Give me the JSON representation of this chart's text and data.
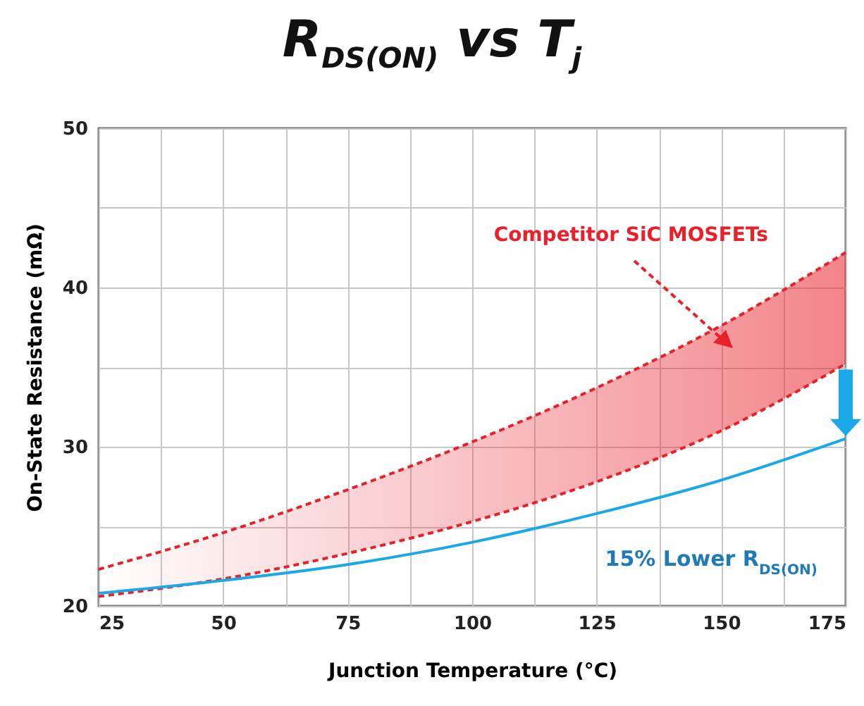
{
  "chart_data": {
    "type": "line",
    "title": "R$_{DS(ON)}$ vs T$_{j}$",
    "xlabel": "Junction Temperature (°C)",
    "ylabel": "On-State Resistance (mΩ)",
    "x": [
      25,
      50,
      75,
      100,
      125,
      150,
      175
    ],
    "series": [
      {
        "name": "Competitor SiC MOSFETs",
        "color": "#e8202a",
        "line_style": "dashed",
        "values": [
          22.3,
          24.6,
          27.3,
          30.3,
          33.7,
          37.6,
          42.2
        ],
        "lower": [
          20.6,
          21.7,
          23.3,
          25.3,
          27.8,
          31.0,
          35.2
        ],
        "upper": [
          22.3,
          24.6,
          27.3,
          30.3,
          33.7,
          37.6,
          42.2
        ]
      },
      {
        "color": "#e8202a",
        "line_style": "dashed",
        "values": [
          20.6,
          21.7,
          23.3,
          25.3,
          27.8,
          31.0,
          35.2
        ]
      },
      {
        "color": "#1aa8e8",
        "line_style": "solid",
        "values": [
          20.8,
          21.6,
          22.6,
          24.0,
          25.8,
          27.9,
          30.5
        ]
      }
    ],
    "annotations": [
      "15% Lower R$_{DS(ON)}$"
    ],
    "xlim": [
      25,
      175
    ],
    "xticks": [
      25,
      {
        "value": 37.5,
        "label": null
      },
      50,
      {
        "value": 62.5,
        "label": null
      },
      75,
      {
        "value": 87.5,
        "label": null
      },
      100,
      {
        "value": 112.5,
        "label": null
      },
      125,
      {
        "value": 137.5,
        "label": null
      },
      150,
      {
        "value": 162.5,
        "label": null
      },
      175
    ],
    "ylim": [
      20,
      50
    ],
    "yticks": [
      20,
      {
        "value": 25,
        "label": null
      },
      30,
      {
        "value": 35,
        "label": null
      },
      40,
      {
        "value": 45,
        "label": null
      },
      50
    ],
    "grid": true
  }
}
